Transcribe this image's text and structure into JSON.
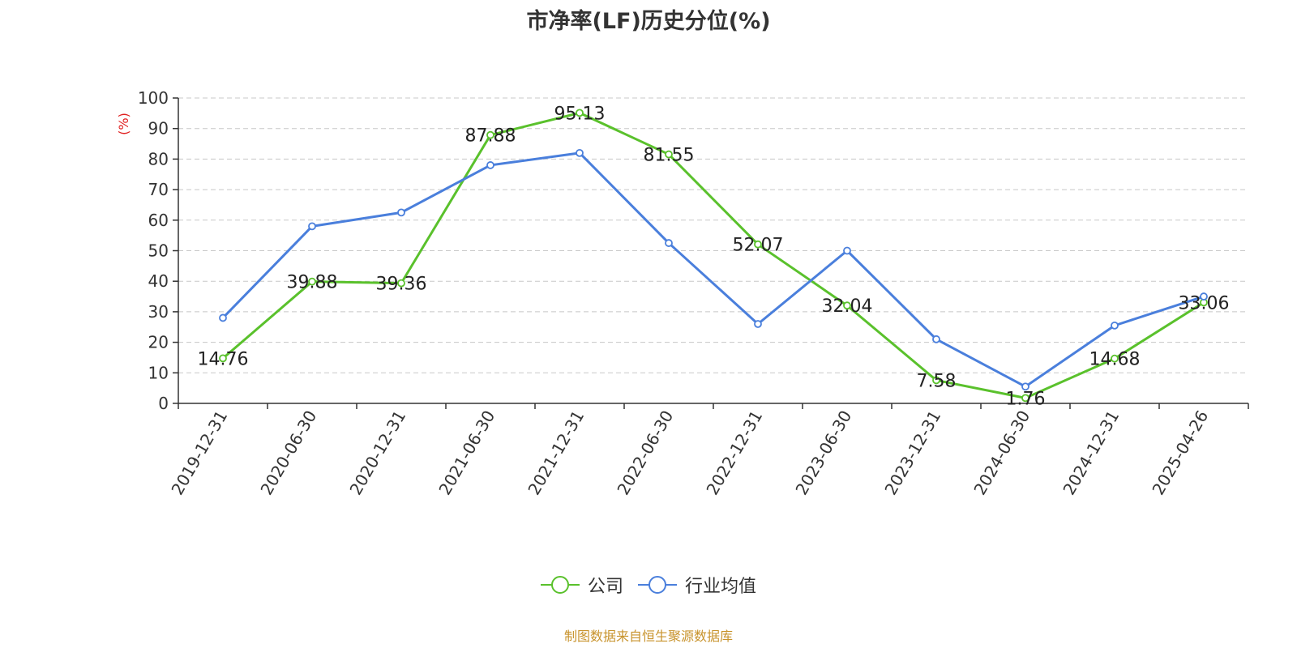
{
  "chart_data": {
    "type": "line",
    "title": "市净率(LF)历史分位(%)",
    "ylabel": "(%)",
    "ylim": [
      0,
      100
    ],
    "yticks": [
      0,
      10,
      20,
      30,
      40,
      50,
      60,
      70,
      80,
      90,
      100
    ],
    "categories": [
      "2019-12-31",
      "2020-06-30",
      "2020-12-31",
      "2021-06-30",
      "2021-12-31",
      "2022-06-30",
      "2022-12-31",
      "2023-06-30",
      "2023-12-31",
      "2024-06-30",
      "2024-12-31",
      "2025-04-26"
    ],
    "series": [
      {
        "name": "公司",
        "color": "#5ac12c",
        "values": [
          14.76,
          39.88,
          39.36,
          87.88,
          95.13,
          81.55,
          52.07,
          32.04,
          7.58,
          1.76,
          14.68,
          33.06
        ],
        "labels": [
          "14.76",
          "39.88",
          "39.36",
          "87.88",
          "95.13",
          "81.55",
          "52.07",
          "32.04",
          "7.58",
          "1.76",
          "14.68",
          "33.06"
        ]
      },
      {
        "name": "行业均值",
        "color": "#4a7fdc",
        "values": [
          28,
          58,
          62.5,
          78,
          82,
          52.5,
          26,
          50,
          21,
          5.5,
          25.5,
          35
        ]
      }
    ],
    "grid": true,
    "legend_position": "bottom-center"
  },
  "source": "制图数据来自恒生聚源数据库"
}
